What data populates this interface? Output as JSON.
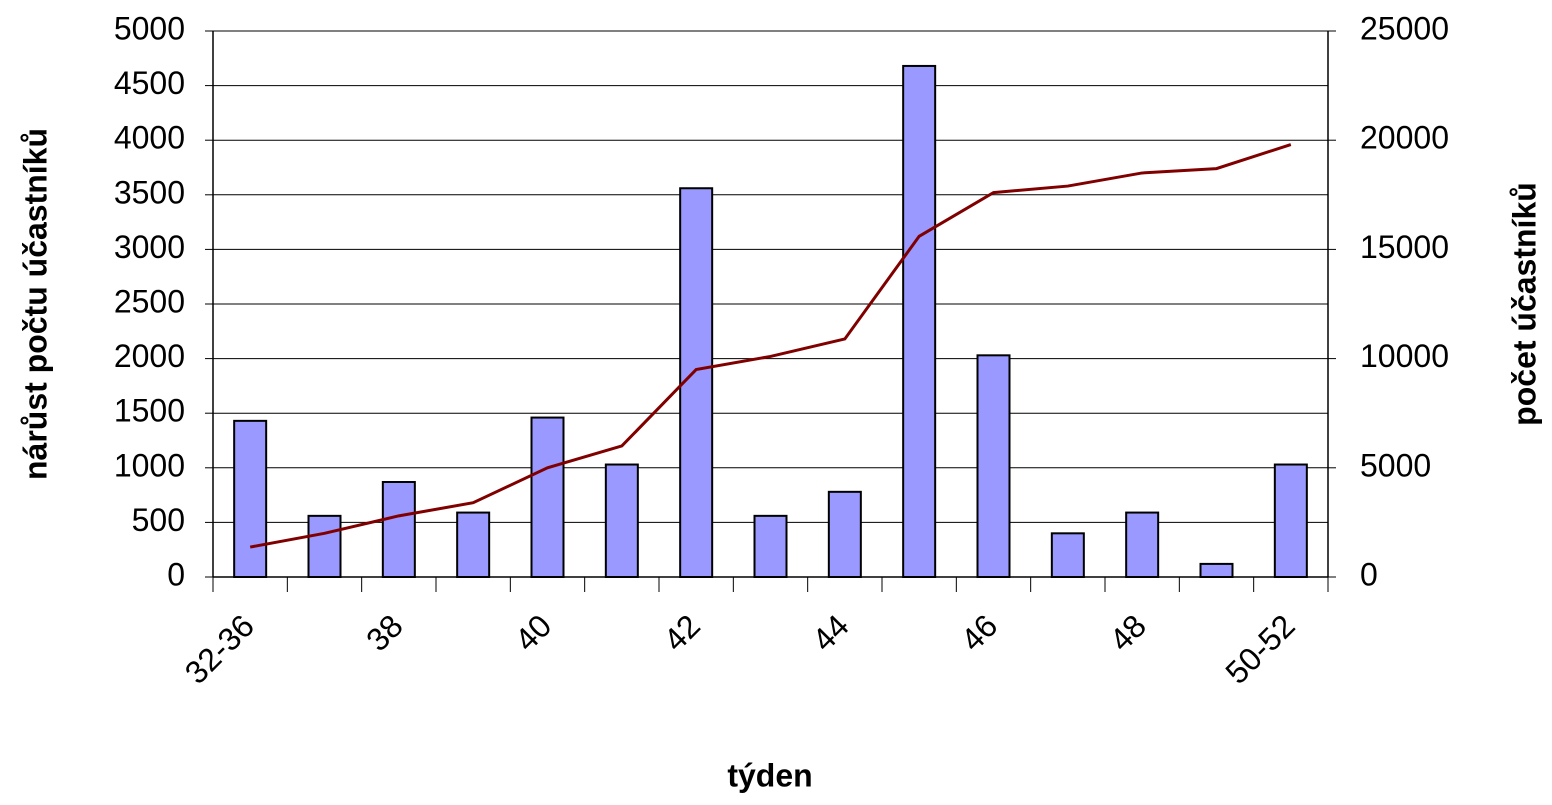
{
  "chart_data": {
    "type": "bar_line",
    "x_label": "týden",
    "y_label": "nárůst počtu účastníků",
    "y2_label": "počet účastníků",
    "categories": [
      "32-36",
      null,
      "38",
      null,
      "40",
      null,
      "42",
      null,
      "44",
      null,
      "46",
      null,
      "48",
      null,
      "50-52"
    ],
    "series": [
      {
        "type": "bar",
        "color": "#9999ff",
        "values": [
          1430,
          560,
          870,
          590,
          1460,
          1030,
          3560,
          560,
          780,
          4680,
          2030,
          400,
          590,
          120,
          1030
        ]
      },
      {
        "type": "line",
        "axis": "y2",
        "color": "#800000",
        "values": [
          1370,
          2000,
          2800,
          3400,
          5000,
          6000,
          9500,
          10100,
          10900,
          15600,
          17600,
          17900,
          18500,
          18700,
          19800
        ]
      }
    ],
    "ylim": [
      0,
      5000
    ],
    "yticks": [
      0,
      500,
      1000,
      1500,
      2000,
      2500,
      3000,
      3500,
      4000,
      4500,
      5000
    ],
    "y2lim": [
      0,
      25000
    ],
    "y2ticks": [
      0,
      5000,
      10000,
      15000,
      20000,
      25000
    ],
    "grid": true
  }
}
